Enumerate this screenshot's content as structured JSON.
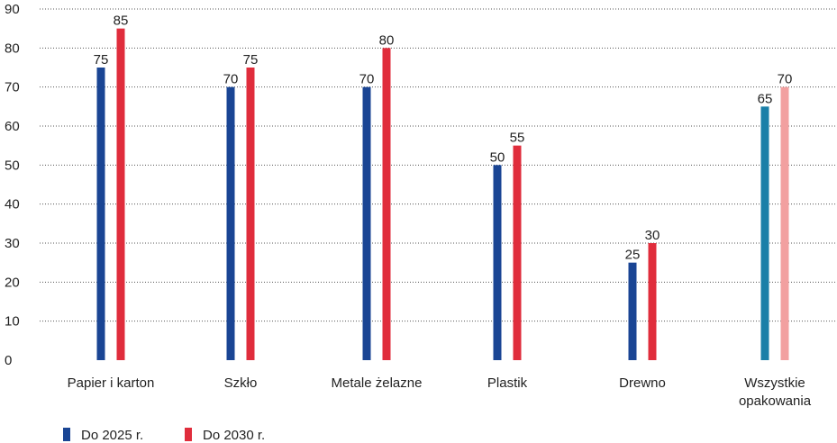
{
  "chart_data": {
    "type": "bar",
    "ylim": [
      0,
      90
    ],
    "yticks": [
      0,
      10,
      20,
      30,
      40,
      50,
      60,
      70,
      80,
      90
    ],
    "grid": "horizontal-dotted",
    "legend_position": "bottom-left",
    "categories": [
      [
        "Papier i karton"
      ],
      [
        "Szkło"
      ],
      [
        "Metale żelazne"
      ],
      [
        "Plastik"
      ],
      [
        "Drewno"
      ],
      [
        "Wszystkie",
        "opakowania"
      ]
    ],
    "series": [
      {
        "name": "Do 2025 r.",
        "values": [
          75,
          70,
          70,
          50,
          25,
          65
        ],
        "color": "#1a4594",
        "last_color": "#1a7fa8"
      },
      {
        "name": "Do 2030 r.",
        "values": [
          85,
          75,
          80,
          55,
          30,
          70
        ],
        "color": "#e02d3c",
        "last_color": "#f2a0a0"
      }
    ]
  }
}
